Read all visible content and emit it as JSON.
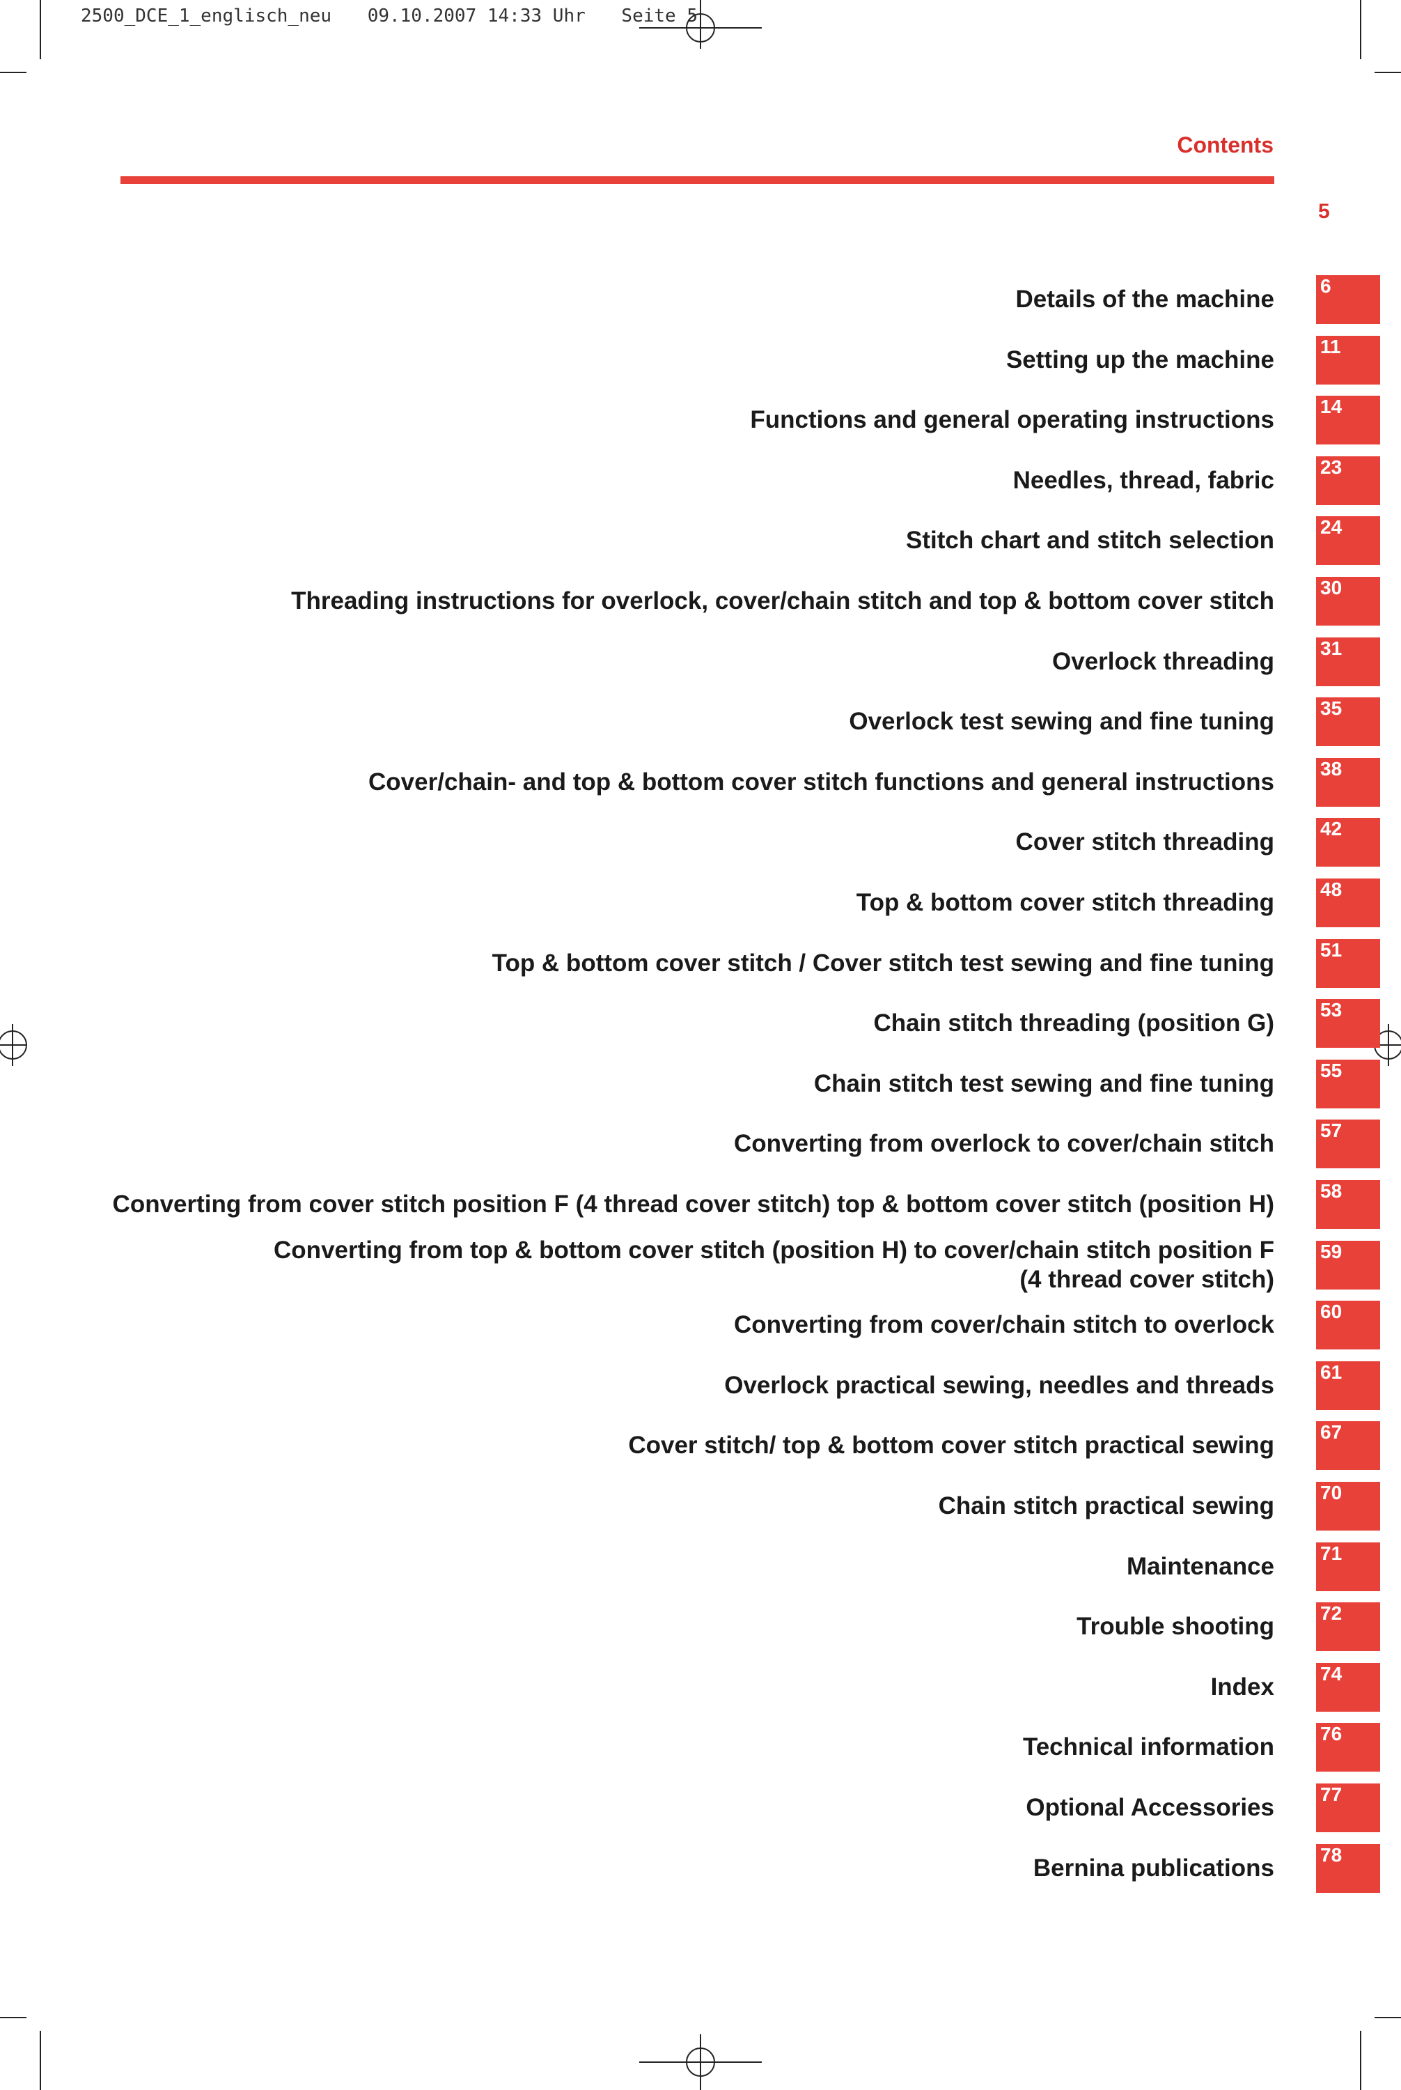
{
  "slug": {
    "file": "2500_DCE_1_englisch_neu",
    "date": "09.10.2007 14:33 Uhr",
    "page": "Seite 5"
  },
  "header": {
    "section_title": "Contents",
    "page_number": "5"
  },
  "colors": {
    "accent_red": "#e8413a",
    "heading_red": "#d9302c",
    "text": "#1a1a1a"
  },
  "toc": [
    {
      "label": "Details of the machine",
      "page": "6"
    },
    {
      "label": "Setting up the machine",
      "page": "11"
    },
    {
      "label": "Functions and general operating instructions",
      "page": "14"
    },
    {
      "label": "Needles, thread, fabric",
      "page": "23"
    },
    {
      "label": "Stitch chart and stitch selection",
      "page": "24"
    },
    {
      "label": "Threading instructions for overlock, cover/chain stitch and top & bottom cover stitch",
      "page": "30"
    },
    {
      "label": "Overlock threading",
      "page": "31"
    },
    {
      "label": "Overlock test sewing and fine tuning",
      "page": "35"
    },
    {
      "label": "Cover/chain- and top & bottom cover stitch functions and general instructions",
      "page": "38"
    },
    {
      "label": "Cover stitch threading",
      "page": "42"
    },
    {
      "label": "Top & bottom cover stitch threading",
      "page": "48"
    },
    {
      "label": "Top & bottom cover stitch / Cover stitch test sewing and fine tuning",
      "page": "51"
    },
    {
      "label": "Chain stitch threading (position G)",
      "page": "53"
    },
    {
      "label": "Chain stitch test sewing and fine tuning",
      "page": "55"
    },
    {
      "label": "Converting from overlock to cover/chain stitch",
      "page": "57"
    },
    {
      "label": "Converting from cover stitch position F (4 thread cover stitch) top & bottom cover stitch (position H)",
      "page": "58"
    },
    {
      "label": "Converting from top & bottom cover stitch (position H) to cover/chain stitch position F\n(4 thread cover stitch)",
      "page": "59"
    },
    {
      "label": "Converting from cover/chain stitch to overlock",
      "page": "60"
    },
    {
      "label": "Overlock practical sewing, needles and threads",
      "page": "61"
    },
    {
      "label": "Cover stitch/ top & bottom cover stitch practical sewing",
      "page": "67"
    },
    {
      "label": "Chain stitch practical sewing",
      "page": "70"
    },
    {
      "label": "Maintenance",
      "page": "71"
    },
    {
      "label": "Trouble shooting",
      "page": "72"
    },
    {
      "label": "Index",
      "page": "74"
    },
    {
      "label": "Technical information",
      "page": "76"
    },
    {
      "label": "Optional Accessories",
      "page": "77"
    },
    {
      "label": "Bernina publications",
      "page": "78"
    }
  ]
}
